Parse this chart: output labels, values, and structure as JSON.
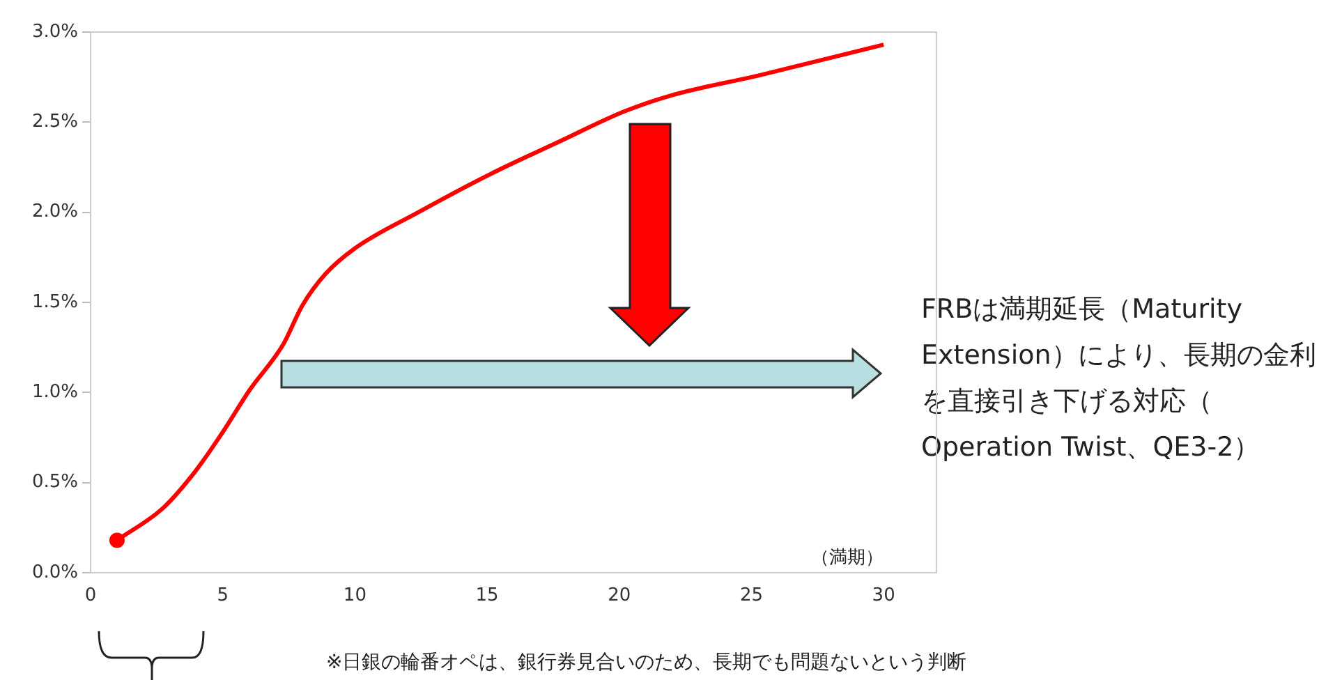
{
  "chart_data": {
    "type": "line",
    "xlabel": "（満期）",
    "xlim": [
      0,
      32
    ],
    "xticks": [
      0,
      5,
      10,
      15,
      20,
      25,
      30
    ],
    "ylim": [
      0,
      3
    ],
    "yticks": [
      {
        "value": 0,
        "label": "0.0%"
      },
      {
        "value": 0.5,
        "label": "0.5%"
      },
      {
        "value": 1,
        "label": "1.0%"
      },
      {
        "value": 1.5,
        "label": "1.5%"
      },
      {
        "value": 2,
        "label": "2.0%"
      },
      {
        "value": 2.5,
        "label": "2.5%"
      },
      {
        "value": 3,
        "label": "3.0%"
      }
    ],
    "grid": false,
    "legend": false,
    "series": [
      {
        "color": "#ff0000",
        "marker": "none",
        "x": [
          1,
          2.75,
          4,
          5,
          6,
          7.3,
          8,
          8.9,
          10,
          12.4,
          15.1,
          17.7,
          20.2,
          22,
          25.3,
          30
        ],
        "values": [
          0.18,
          0.36,
          0.57,
          0.78,
          1.01,
          1.27,
          1.48,
          1.66,
          1.8,
          2.0,
          2.21,
          2.39,
          2.56,
          2.65,
          2.76,
          2.93
        ]
      },
      {
        "type": "scatter",
        "color": "#ff0000",
        "marker": "circle",
        "x": [
          1
        ],
        "values": [
          0.18
        ]
      }
    ],
    "annotations": [
      "FRBは満期延長（Maturity Extension）により、長期の金利を直接引き下げる対応（Operation Twist、QE3-2）",
      "※日銀の輪番オペは、銀行券見合いのため、長期でも問題ないという判断"
    ]
  }
}
